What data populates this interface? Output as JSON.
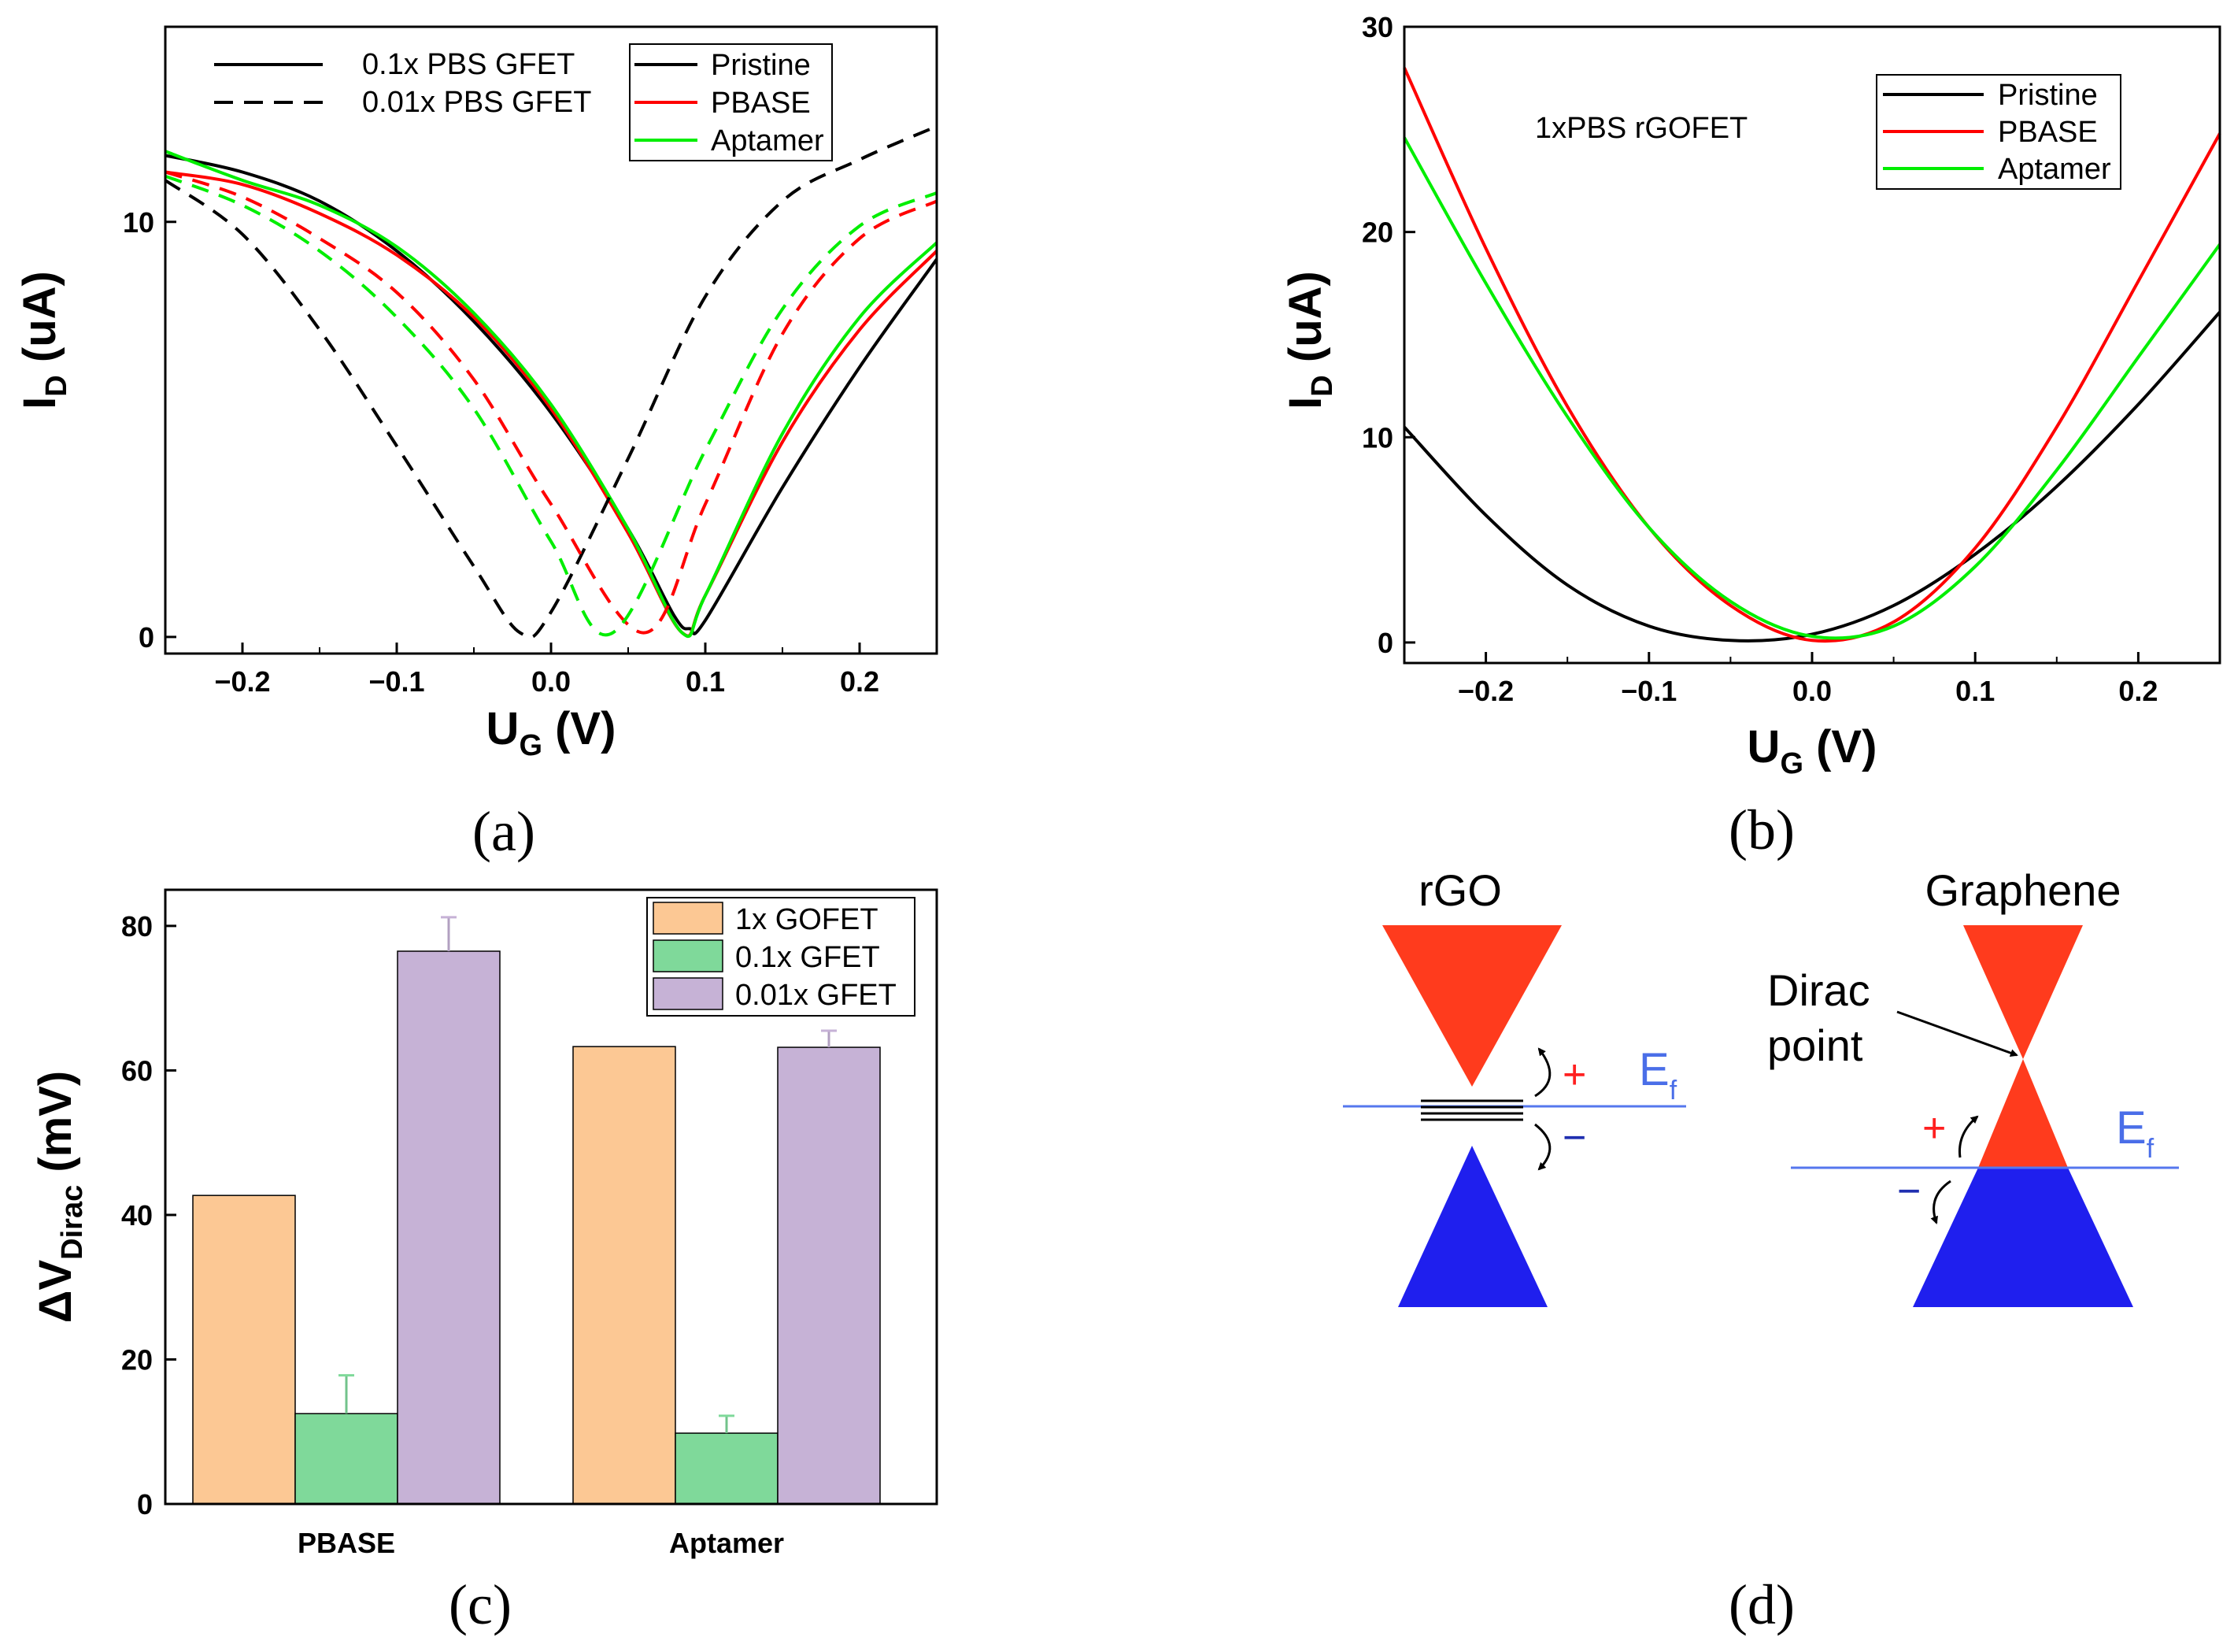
{
  "panel_labels": {
    "a": "(a)",
    "b": "(b)",
    "c": "(c)",
    "d": "(d)"
  },
  "chart_data": [
    {
      "id": "a",
      "type": "line",
      "xlabel_main": "U",
      "xlabel_sub": "G",
      "xlabel_unit": " (V)",
      "ylabel_main": "I",
      "ylabel_sub": "D",
      "ylabel_unit": " (uA)",
      "xlim": [
        -0.25,
        0.25
      ],
      "ylim": [
        -0.4,
        14.7
      ],
      "xticks": [
        -0.2,
        -0.1,
        0.0,
        0.1,
        0.2
      ],
      "xtick_labels": [
        "−0.2",
        "−0.1",
        "0.0",
        "0.1",
        "0.2"
      ],
      "yticks": [
        0,
        10
      ],
      "ytick_labels": [
        "0",
        "10"
      ],
      "style_legend": [
        {
          "label": "0.1x PBS GFET",
          "dash": "solid"
        },
        {
          "label": "0.01x PBS GFET",
          "dash": "dashed"
        }
      ],
      "color_legend": [
        {
          "label": "Pristine",
          "color": "#000000"
        },
        {
          "label": "PBASE",
          "color": "#ff0000"
        },
        {
          "label": "Aptamer",
          "color": "#00ee00"
        }
      ],
      "series": [
        {
          "name": "Pristine",
          "condition": "0.1x PBS GFET",
          "dash": "solid",
          "color": "#000000",
          "x": [
            -0.25,
            -0.2,
            -0.15,
            -0.1,
            -0.05,
            0,
            0.05,
            0.08,
            0.09,
            0.1,
            0.15,
            0.2,
            0.25
          ],
          "y": [
            11.6,
            11.2,
            10.5,
            9.3,
            7.6,
            5.4,
            2.6,
            0.5,
            0.2,
            0.4,
            3.6,
            6.5,
            9.1
          ]
        },
        {
          "name": "PBASE",
          "condition": "0.1x PBS GFET",
          "dash": "solid",
          "color": "#ff0000",
          "x": [
            -0.25,
            -0.2,
            -0.15,
            -0.1,
            -0.05,
            0,
            0.05,
            0.085,
            0.1,
            0.15,
            0.2,
            0.25
          ],
          "y": [
            11.2,
            10.9,
            10.2,
            9.2,
            7.7,
            5.5,
            2.5,
            0.1,
            1.0,
            4.7,
            7.4,
            9.3
          ]
        },
        {
          "name": "Aptamer",
          "condition": "0.1x PBS GFET",
          "dash": "solid",
          "color": "#00ee00",
          "x": [
            -0.25,
            -0.2,
            -0.15,
            -0.1,
            -0.05,
            0,
            0.05,
            0.085,
            0.1,
            0.15,
            0.2,
            0.25
          ],
          "y": [
            11.7,
            11.0,
            10.4,
            9.4,
            7.8,
            5.6,
            2.6,
            0.1,
            1.0,
            4.9,
            7.7,
            9.5
          ]
        },
        {
          "name": "Pristine",
          "condition": "0.01x PBS GFET",
          "dash": "dashed",
          "color": "#000000",
          "x": [
            -0.25,
            -0.2,
            -0.15,
            -0.1,
            -0.05,
            -0.02,
            0,
            0.05,
            0.1,
            0.15,
            0.2,
            0.25
          ],
          "y": [
            11.0,
            9.7,
            7.4,
            4.6,
            1.7,
            0.1,
            0.6,
            4.3,
            8.2,
            10.5,
            11.5,
            12.3
          ]
        },
        {
          "name": "PBASE",
          "condition": "0.01x PBS GFET",
          "dash": "dashed",
          "color": "#ff0000",
          "x": [
            -0.25,
            -0.2,
            -0.15,
            -0.1,
            -0.05,
            0,
            0.06,
            0.1,
            0.15,
            0.2,
            0.25
          ],
          "y": [
            11.2,
            10.6,
            9.6,
            8.3,
            6.2,
            3.2,
            0.1,
            3.2,
            7.3,
            9.6,
            10.5
          ]
        },
        {
          "name": "Aptamer",
          "condition": "0.01x PBS GFET",
          "dash": "dashed",
          "color": "#00ee00",
          "x": [
            -0.25,
            -0.2,
            -0.15,
            -0.1,
            -0.05,
            0,
            0.04,
            0.1,
            0.15,
            0.2,
            0.25
          ],
          "y": [
            11.1,
            10.4,
            9.3,
            7.7,
            5.5,
            2.3,
            0.1,
            4.5,
            7.9,
            9.9,
            10.7
          ]
        }
      ]
    },
    {
      "id": "b",
      "type": "line",
      "annotation": "1xPBS rGOFET",
      "xlabel_main": "U",
      "xlabel_sub": "G",
      "xlabel_unit": " (V)",
      "ylabel_main": "I",
      "ylabel_sub": "D",
      "ylabel_unit": " (uA)",
      "xlim": [
        -0.25,
        0.25
      ],
      "ylim": [
        -1,
        30
      ],
      "xticks": [
        -0.2,
        -0.1,
        0.0,
        0.1,
        0.2
      ],
      "xtick_labels": [
        "−0.2",
        "−0.1",
        "0.0",
        "0.1",
        "0.2"
      ],
      "yticks": [
        0,
        10,
        20,
        30
      ],
      "ytick_labels": [
        "0",
        "10",
        "20",
        "30"
      ],
      "color_legend": [
        {
          "label": "Pristine",
          "color": "#000000"
        },
        {
          "label": "PBASE",
          "color": "#ff0000"
        },
        {
          "label": "Aptamer",
          "color": "#00ee00"
        }
      ],
      "series": [
        {
          "name": "Pristine",
          "color": "#000000",
          "x": [
            -0.25,
            -0.2,
            -0.15,
            -0.1,
            -0.05,
            0,
            0.05,
            0.1,
            0.15,
            0.2,
            0.25
          ],
          "y": [
            10.5,
            6.2,
            2.8,
            0.8,
            0.1,
            0.4,
            1.8,
            4.3,
            7.6,
            11.6,
            16.1
          ]
        },
        {
          "name": "PBASE",
          "color": "#ff0000",
          "x": [
            -0.25,
            -0.2,
            -0.15,
            -0.1,
            -0.05,
            0,
            0.05,
            0.1,
            0.15,
            0.2,
            0.25
          ],
          "y": [
            28.0,
            19.2,
            11.5,
            5.6,
            1.8,
            0.1,
            1.0,
            4.6,
            10.5,
            17.6,
            24.8
          ]
        },
        {
          "name": "Aptamer",
          "color": "#00ee00",
          "x": [
            -0.25,
            -0.2,
            -0.15,
            -0.1,
            -0.05,
            0,
            0.05,
            0.1,
            0.15,
            0.2,
            0.25
          ],
          "y": [
            24.6,
            17.5,
            11.0,
            5.6,
            2.0,
            0.3,
            0.8,
            3.7,
            8.4,
            13.9,
            19.4
          ]
        }
      ]
    },
    {
      "id": "c",
      "type": "bar",
      "ylabel_main": "ΔV",
      "ylabel_sub": "Dirac",
      "ylabel_unit": " (mV)",
      "ylim": [
        0,
        85
      ],
      "yticks": [
        0,
        20,
        40,
        60,
        80
      ],
      "ytick_labels": [
        "0",
        "20",
        "40",
        "60",
        "80"
      ],
      "categories": [
        "PBASE",
        "Aptamer"
      ],
      "series": [
        {
          "name": "1x GOFET",
          "color": "#fcc894",
          "values": [
            42.7,
            63.3
          ],
          "errors": [
            0,
            0
          ]
        },
        {
          "name": "0.1x GFET",
          "color": "#7fd99a",
          "values": [
            12.5,
            9.8
          ],
          "errors": [
            5.3,
            2.4
          ]
        },
        {
          "name": "0.01x GFET",
          "color": "#c6b2d6",
          "values": [
            76.5,
            63.2
          ],
          "errors": [
            4.7,
            2.3
          ]
        }
      ]
    }
  ],
  "diagram": {
    "rgo": {
      "title": "rGO",
      "plus": "+",
      "minus": "−",
      "ef_main": "E",
      "ef_sub": "f"
    },
    "graphene": {
      "title": "Graphene",
      "callout_line1": "Dirac",
      "callout_line2": "point",
      "plus": "+",
      "minus": "−",
      "ef_main": "E",
      "ef_sub": "f"
    },
    "colors": {
      "conduction": "#ff3b1d",
      "valence": "#1f1fee",
      "fermi": "#5577ee",
      "plus": "#ff2020",
      "minus": "#1f2fb0"
    }
  }
}
